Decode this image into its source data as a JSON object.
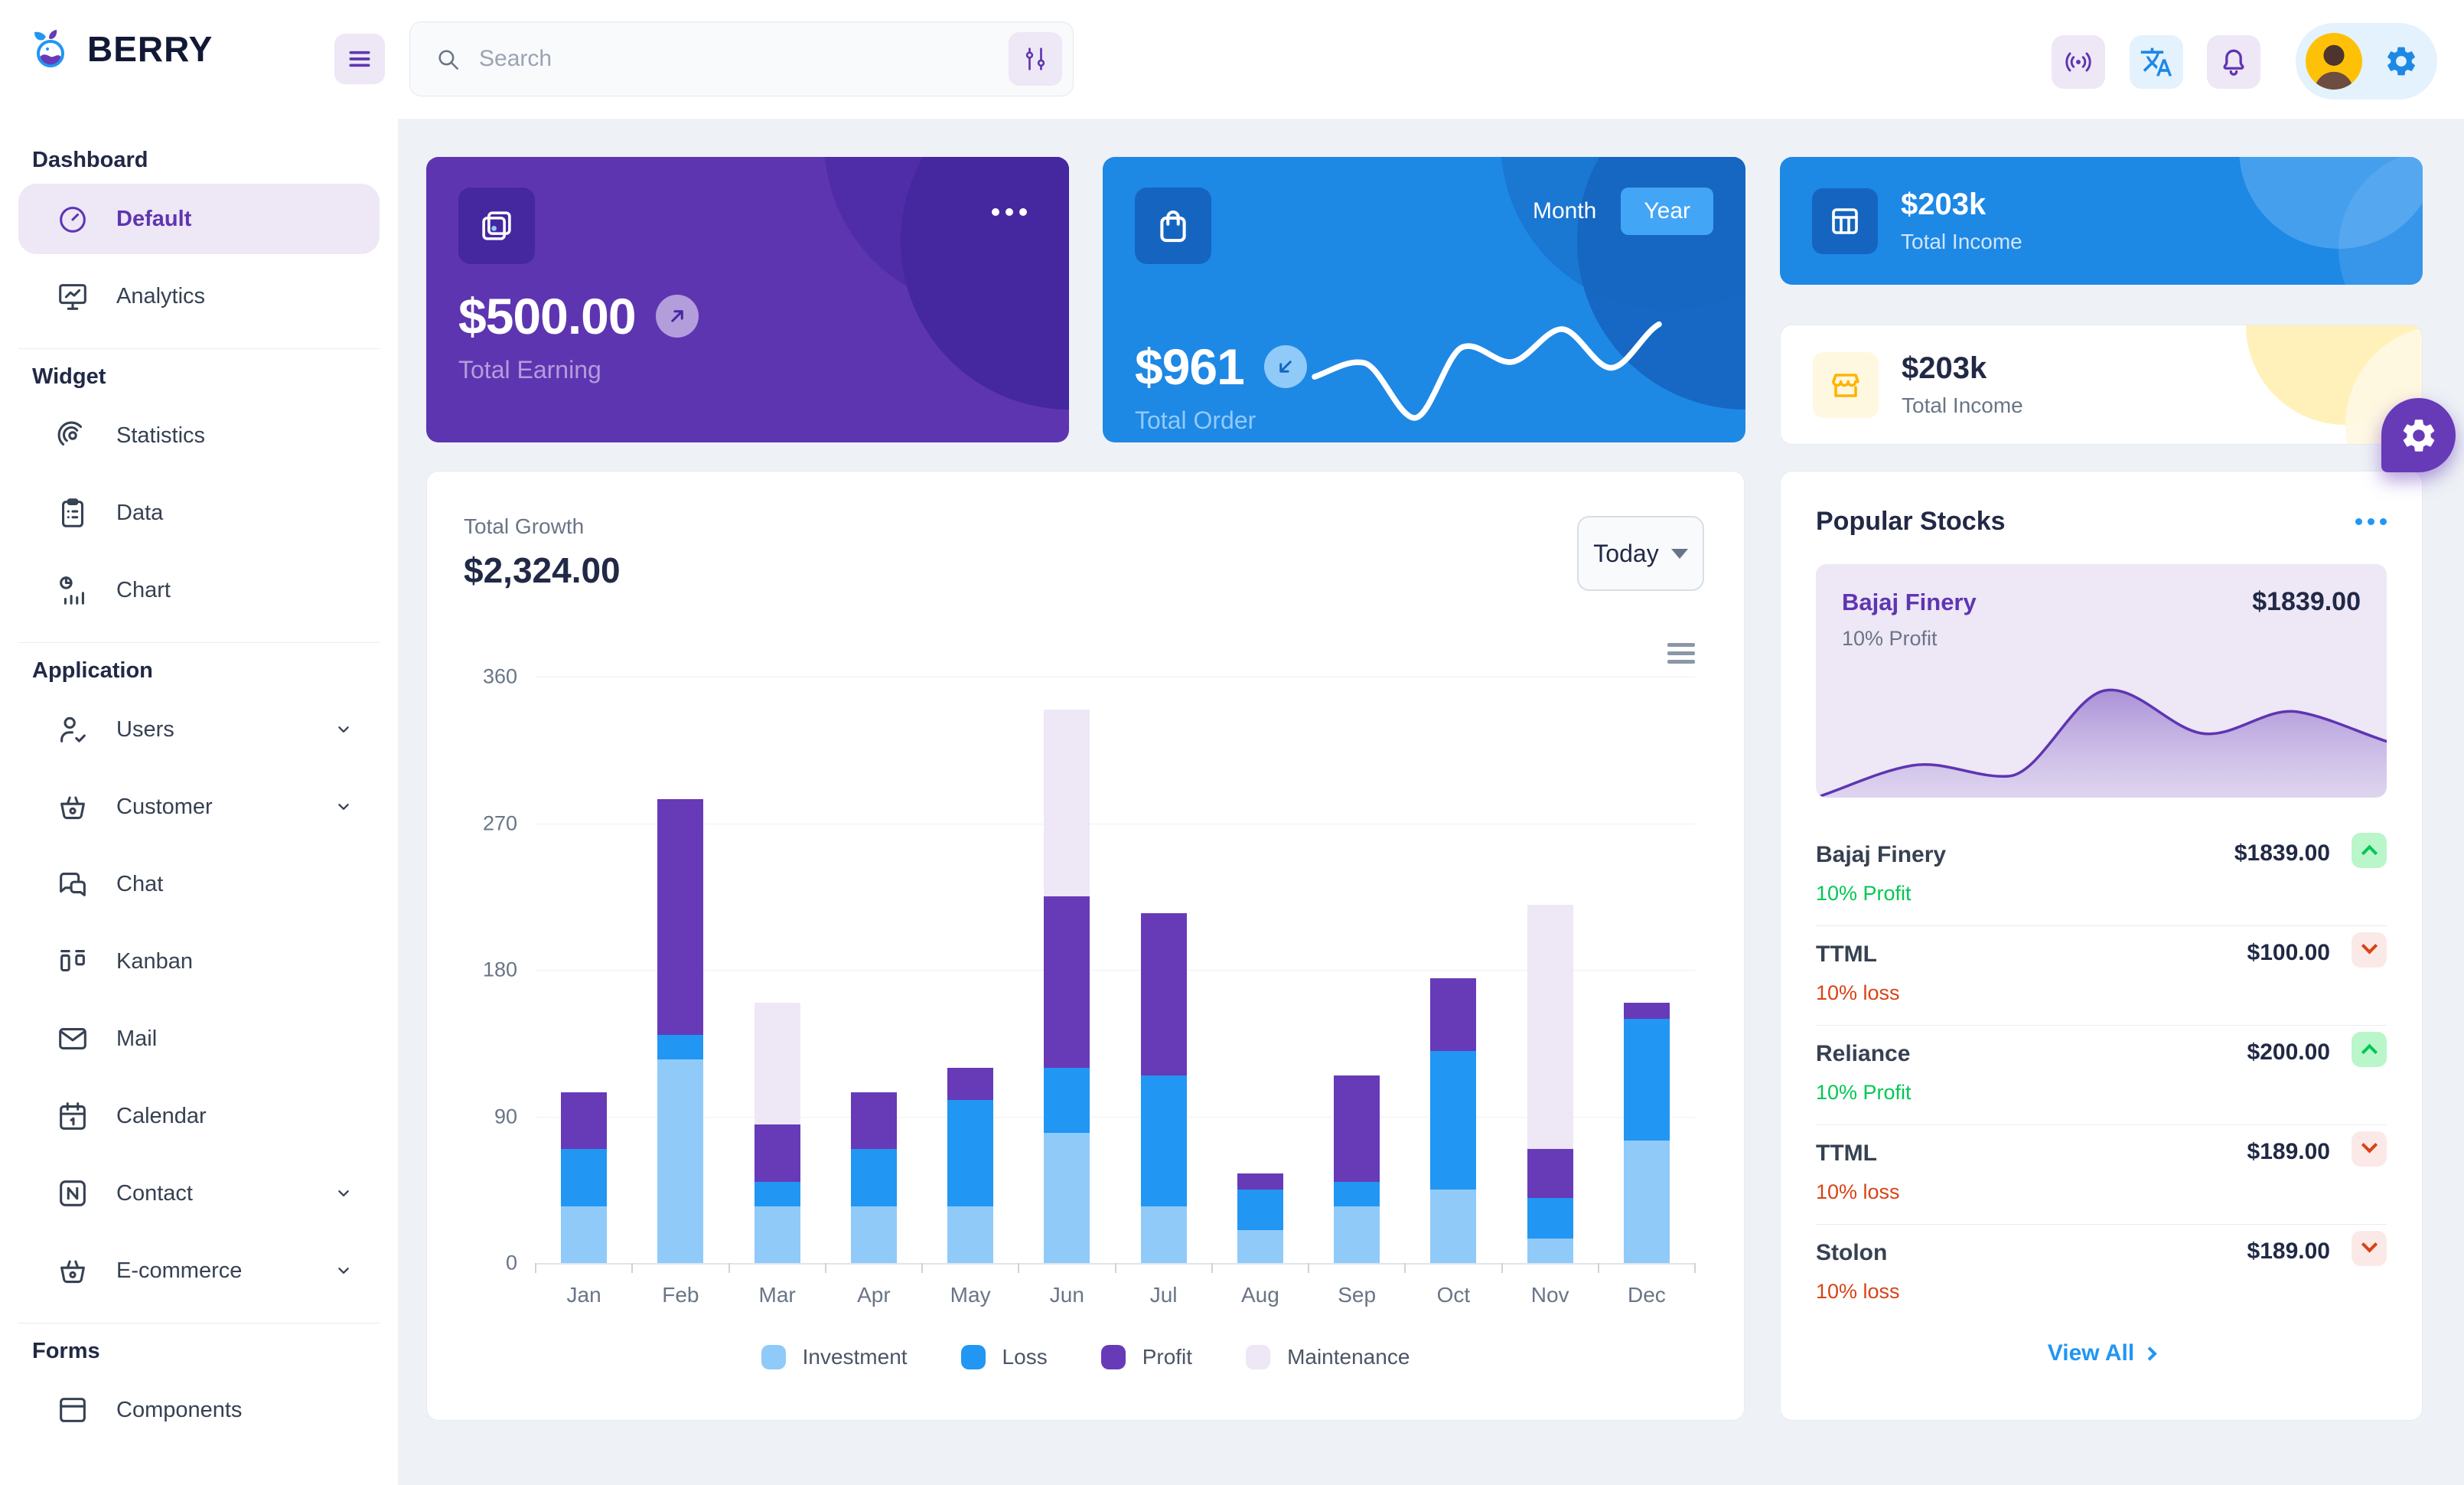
{
  "header": {
    "brand": "BERRY",
    "search_placeholder": "Search"
  },
  "sidebar": {
    "sections": [
      {
        "label": "Dashboard",
        "items": [
          {
            "label": "Default",
            "selected": true
          },
          {
            "label": "Analytics"
          }
        ]
      },
      {
        "label": "Widget",
        "items": [
          {
            "label": "Statistics"
          },
          {
            "label": "Data"
          },
          {
            "label": "Chart"
          }
        ]
      },
      {
        "label": "Application",
        "items": [
          {
            "label": "Users",
            "expandable": true
          },
          {
            "label": "Customer",
            "expandable": true
          },
          {
            "label": "Chat"
          },
          {
            "label": "Kanban"
          },
          {
            "label": "Mail"
          },
          {
            "label": "Calendar"
          },
          {
            "label": "Contact",
            "expandable": true
          },
          {
            "label": "E-commerce",
            "expandable": true
          }
        ]
      },
      {
        "label": "Forms",
        "items": [
          {
            "label": "Components"
          }
        ]
      }
    ]
  },
  "earning_card": {
    "amount": "$500.00",
    "label": "Total Earning"
  },
  "order_card": {
    "amount": "$961",
    "label": "Total Order",
    "toggle": [
      "Month",
      "Year"
    ],
    "selected": "Year"
  },
  "income_card_blue": {
    "amount": "$203k",
    "label": "Total Income"
  },
  "income_card_light": {
    "amount": "$203k",
    "label": "Total Income"
  },
  "growth_card": {
    "title": "Total Growth",
    "amount": "$2,324.00",
    "range": "Today"
  },
  "stocks": {
    "title": "Popular Stocks",
    "highlight": {
      "name": "Bajaj Finery",
      "price": "$1839.00",
      "sub": "10% Profit"
    },
    "rows": [
      {
        "name": "Bajaj Finery",
        "price": "$1839.00",
        "sub": "10% Profit",
        "direction": "up"
      },
      {
        "name": "TTML",
        "price": "$100.00",
        "sub": "10% loss",
        "direction": "down"
      },
      {
        "name": "Reliance",
        "price": "$200.00",
        "sub": "10% Profit",
        "direction": "up"
      },
      {
        "name": "TTML",
        "price": "$189.00",
        "sub": "10% loss",
        "direction": "down"
      },
      {
        "name": "Stolon",
        "price": "$189.00",
        "sub": "10% loss",
        "direction": "down"
      }
    ],
    "view_all": "View All"
  },
  "colors": {
    "accent_purple": "#5e35b1",
    "accent_purple_dark": "#4527a0",
    "accent_blue": "#1e88e5",
    "accent_blue_dark": "#1565c0",
    "light_purple": "#ede7f6",
    "light_blue": "#e3f2fd",
    "page_bg": "#eef2f6",
    "text_dark": "#212946",
    "text_gray": "#697586",
    "success": "#00c853",
    "error": "#d84315",
    "warning": "#ffb300"
  },
  "chart_data": [
    {
      "type": "bar",
      "stacked": true,
      "title": "Total Growth",
      "categories": [
        "Jan",
        "Feb",
        "Mar",
        "Apr",
        "May",
        "Jun",
        "Jul",
        "Aug",
        "Sep",
        "Oct",
        "Nov",
        "Dec"
      ],
      "series": [
        {
          "name": "Investment",
          "color": "#90caf9",
          "values": [
            35,
            125,
            35,
            35,
            35,
            80,
            35,
            20,
            35,
            45,
            15,
            75
          ]
        },
        {
          "name": "Loss",
          "color": "#2196f3",
          "values": [
            35,
            15,
            15,
            35,
            65,
            40,
            80,
            25,
            15,
            85,
            25,
            75
          ]
        },
        {
          "name": "Profit",
          "color": "#673ab7",
          "values": [
            35,
            145,
            35,
            35,
            20,
            105,
            100,
            10,
            65,
            45,
            30,
            10
          ]
        },
        {
          "name": "Maintenance",
          "color": "#ede7f6",
          "values": [
            0,
            0,
            75,
            0,
            0,
            115,
            0,
            0,
            0,
            0,
            150,
            0
          ]
        }
      ],
      "ylim": [
        0,
        360
      ],
      "yticks": [
        0,
        90,
        180,
        270,
        360
      ],
      "grid": true,
      "legend_position": "bottom"
    },
    {
      "type": "line",
      "title": "Total Order (Year)",
      "color": "#ffffff",
      "values": [
        35,
        44,
        9,
        54,
        45,
        66,
        41,
        69
      ]
    },
    {
      "type": "area",
      "title": "Bajaj Finery",
      "color": "#5e35b1",
      "values": [
        0,
        15,
        10,
        50,
        30,
        40,
        25
      ]
    }
  ]
}
